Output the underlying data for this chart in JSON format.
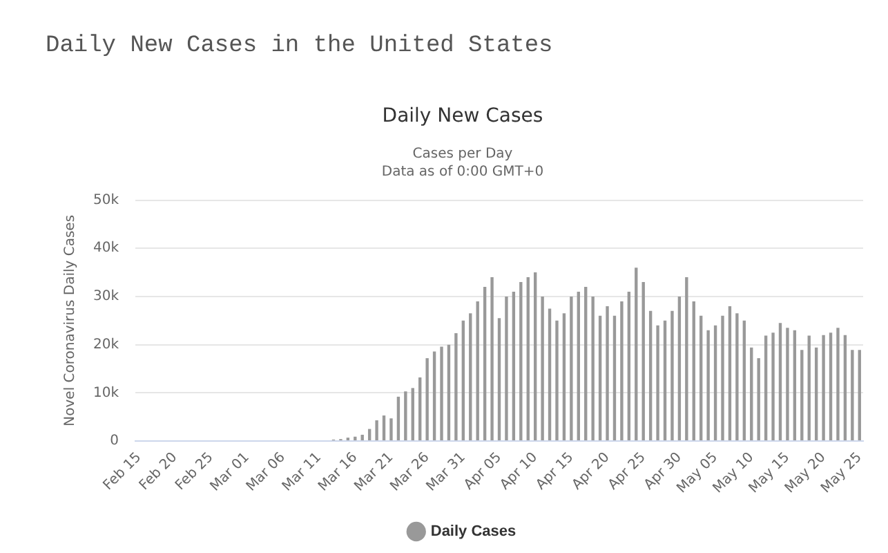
{
  "chart_data": {
    "type": "bar",
    "title": "Daily New Cases",
    "subtitle": "Cases per Day\nData as of 0:00 GMT+0",
    "annotations": [
      "Daily New Cases in the United States"
    ],
    "ylabel": "Novel Coronavirus Daily Cases",
    "categories": [
      "Feb 15",
      null,
      null,
      null,
      null,
      "Feb 20",
      null,
      null,
      null,
      null,
      "Feb 25",
      null,
      null,
      null,
      null,
      "Mar 01",
      null,
      null,
      null,
      null,
      "Mar 06",
      null,
      null,
      null,
      null,
      "Mar 11",
      null,
      null,
      null,
      null,
      "Mar 16",
      null,
      null,
      null,
      null,
      "Mar 21",
      null,
      null,
      null,
      null,
      "Mar 26",
      null,
      null,
      null,
      null,
      "Mar 31",
      null,
      null,
      null,
      null,
      "Apr 05",
      null,
      null,
      null,
      null,
      "Apr 10",
      null,
      null,
      null,
      null,
      "Apr 15",
      null,
      null,
      null,
      null,
      "Apr 20",
      null,
      null,
      null,
      null,
      "Apr 25",
      null,
      null,
      null,
      null,
      "Apr 30",
      null,
      null,
      null,
      null,
      "May 05",
      null,
      null,
      null,
      null,
      "May 10",
      null,
      null,
      null,
      null,
      "May 15",
      null,
      null,
      null,
      null,
      "May 20",
      null,
      null,
      null,
      null,
      "May 25"
    ],
    "series": [
      {
        "name": "Daily Cases",
        "color": "#999999",
        "values": [
          0,
          0,
          0,
          0,
          0,
          0,
          0,
          0,
          0,
          0,
          0,
          0,
          0,
          0,
          0,
          0,
          0,
          0,
          0,
          0,
          0,
          0,
          0,
          0,
          0,
          0,
          0,
          300,
          400,
          700,
          900,
          1300,
          2500,
          4300,
          5300,
          4700,
          9200,
          10300,
          11000,
          13200,
          17200,
          18600,
          19600,
          20000,
          22400,
          25000,
          26500,
          29000,
          32000,
          34000,
          25500,
          30000,
          31000,
          33000,
          34000,
          35000,
          30000,
          27500,
          25000,
          26500,
          30000,
          31000,
          32000,
          30000,
          26000,
          28000,
          26000,
          29000,
          31000,
          36000,
          33000,
          27000,
          24000,
          25000,
          27000,
          30000,
          34000,
          29000,
          26000,
          23000,
          24000,
          26000,
          28000,
          26500,
          25000,
          19400,
          17200,
          21900,
          22500,
          24500,
          23500,
          23000,
          18900,
          21900,
          19400,
          22000,
          22500,
          23500,
          22000,
          18900,
          18900
        ]
      }
    ],
    "ylim": [
      0,
      50000
    ],
    "yticks": [
      0,
      {
        "value": 10000,
        "label": "10k"
      },
      {
        "value": 20000,
        "label": "20k"
      },
      {
        "value": 30000,
        "label": "30k"
      },
      {
        "value": 40000,
        "label": "40k"
      },
      {
        "value": 50000,
        "label": "50k"
      }
    ],
    "grid": "y",
    "legend": "bottom"
  }
}
